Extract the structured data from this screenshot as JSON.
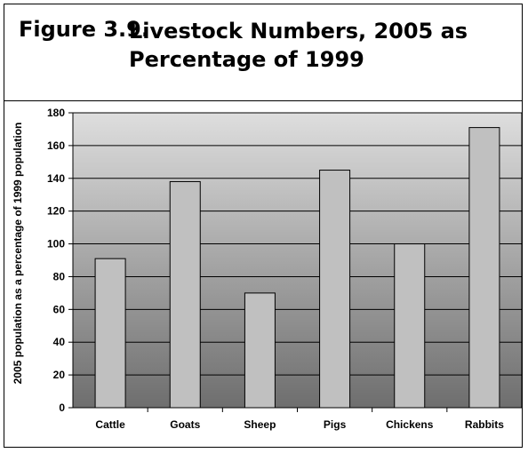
{
  "figure": {
    "number": "Figure 3.9.",
    "title": "Livestock Numbers, 2005 as Percentage of 1999"
  },
  "chart_data": {
    "type": "bar",
    "title": "Livestock Numbers, 2005 as Percentage of 1999",
    "categories": [
      "Cattle",
      "Goats",
      "Sheep",
      "Pigs",
      "Chickens",
      "Rabbits"
    ],
    "values": [
      91,
      138,
      70,
      145,
      100,
      171
    ],
    "xlabel": "",
    "ylabel": "2005 population as a percentage of 1999 population",
    "ylim": [
      0,
      180
    ],
    "yticks": [
      0,
      20,
      40,
      60,
      80,
      100,
      120,
      140,
      160,
      180
    ],
    "grid": true,
    "legend": "none",
    "colors": {
      "bar_fill": "#c0c0c0",
      "bar_stroke": "#000000",
      "plot_bg_top": "#dedede",
      "plot_bg_bottom": "#6e6e6e"
    }
  }
}
